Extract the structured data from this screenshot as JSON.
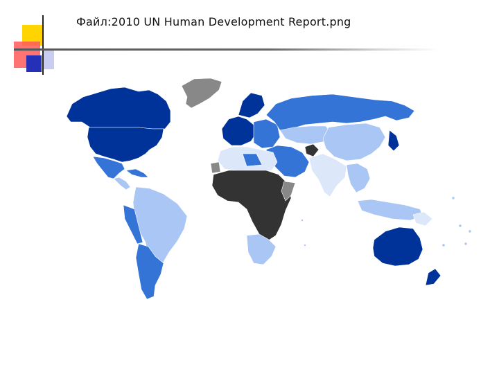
{
  "slide": {
    "title": "Файл:2010 UN Human Development Report.png"
  },
  "map": {
    "colors": {
      "very_high": "#00339a",
      "high": "#3474d6",
      "medium": "#a9c6f5",
      "medium_low": "#dce8fa",
      "low": "#333333",
      "no_data": "#888888"
    }
  }
}
